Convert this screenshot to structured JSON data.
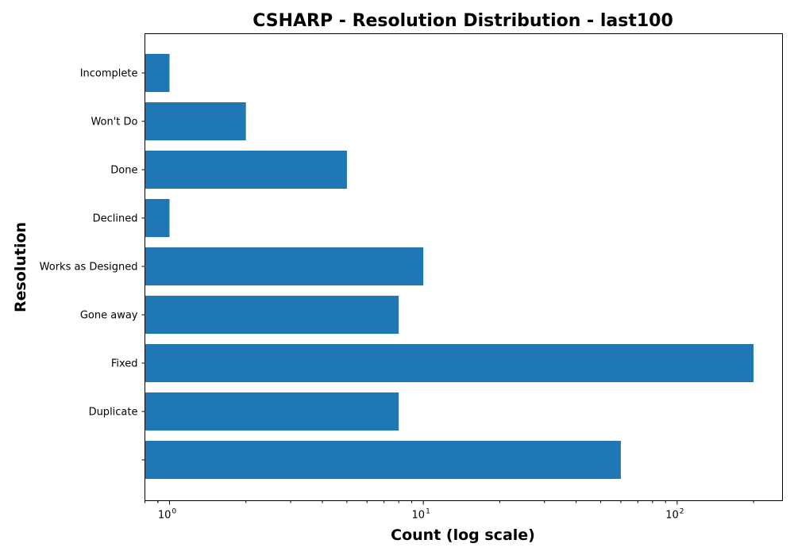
{
  "chart_data": {
    "type": "bar",
    "orientation": "horizontal",
    "title": "CSHARP - Resolution Distribution - last100",
    "xlabel": "Count (log scale)",
    "ylabel": "Resolution",
    "xscale": "log",
    "xlim": [
      0.8,
      260
    ],
    "x_ticks": [
      {
        "value": 1,
        "label": "10",
        "exp": "0"
      },
      {
        "value": 10,
        "label": "10",
        "exp": "1"
      },
      {
        "value": 100,
        "label": "10",
        "exp": "2"
      }
    ],
    "categories": [
      "",
      "Duplicate",
      "Fixed",
      "Gone away",
      "Works as Designed",
      "Declined",
      "Done",
      "Won't Do",
      "Incomplete"
    ],
    "values": [
      60,
      8,
      200,
      8,
      10,
      1,
      5,
      2,
      1
    ],
    "color": "#1f77b4",
    "grid": false,
    "legend": false
  }
}
